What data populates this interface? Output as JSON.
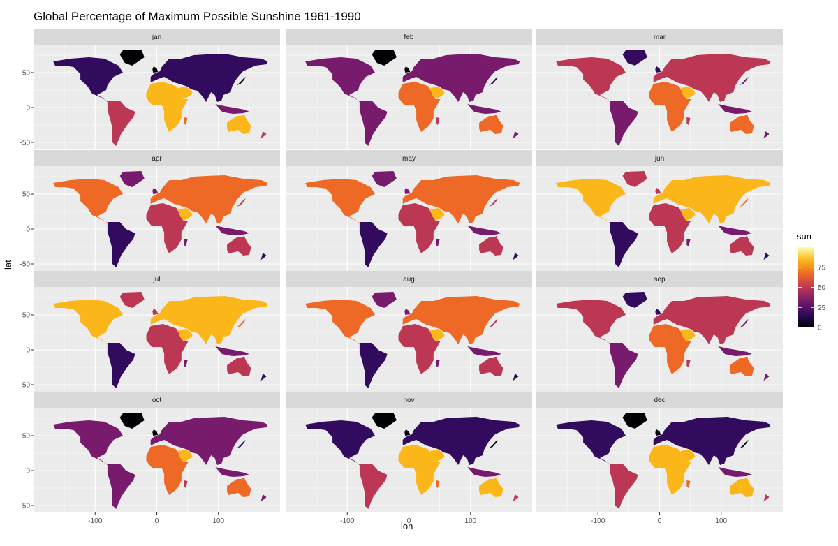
{
  "chart_data": {
    "type": "heatmap",
    "title": "Global Percentage of Maximum Possible Sunshine 1961-1990",
    "xlabel": "lon",
    "ylabel": "lat",
    "panels": [
      "jan",
      "feb",
      "mar",
      "apr",
      "may",
      "jun",
      "jul",
      "aug",
      "sep",
      "oct",
      "nov",
      "dec"
    ],
    "x_ticks": [
      -100,
      0,
      100
    ],
    "y_ticks": [
      50,
      0,
      -50
    ],
    "xlim": [
      -200,
      200
    ],
    "ylim": [
      -60,
      90
    ],
    "grid": true,
    "legend": {
      "title": "sun",
      "placement": "right",
      "ticks": [
        75,
        50,
        25,
        0
      ],
      "range": [
        0,
        100
      ],
      "palette": [
        "#000004",
        "#320a5e",
        "#781b6c",
        "#bc3754",
        "#ed6925",
        "#fbb61a",
        "#fcffa4"
      ]
    },
    "panel_bg": "#ebebeb",
    "strip_bg": "#d9d9d9"
  }
}
